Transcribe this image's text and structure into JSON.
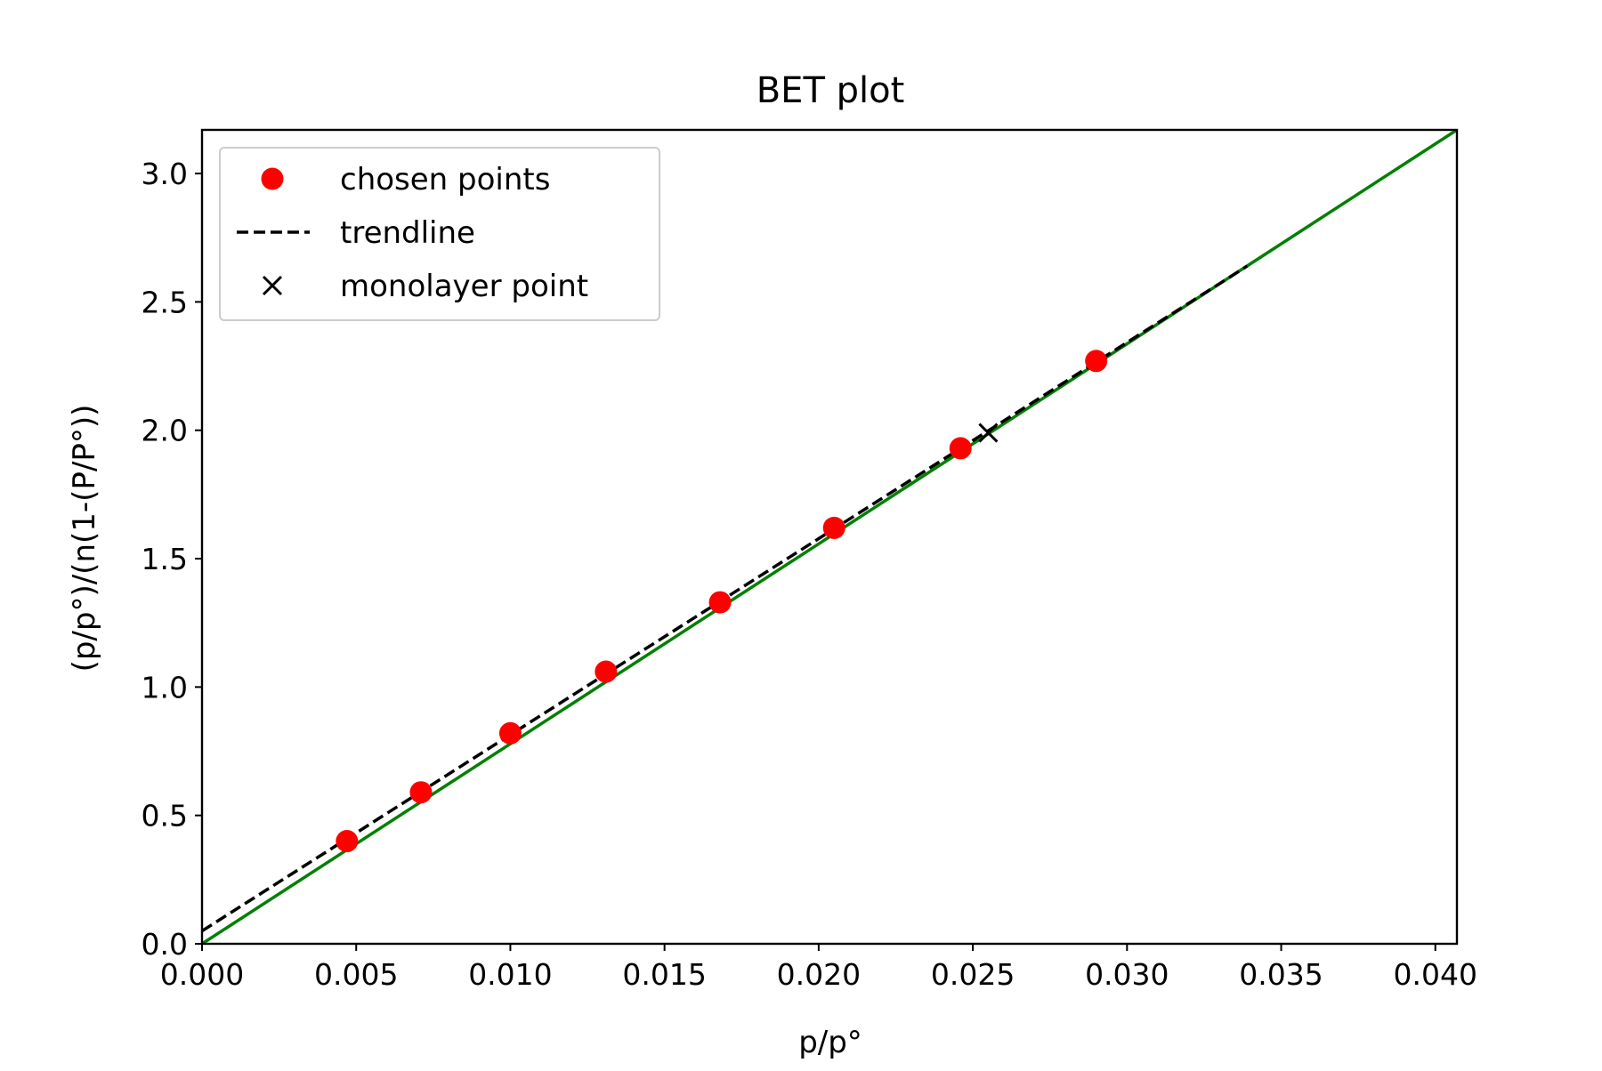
{
  "chart_data": {
    "type": "scatter",
    "title": "BET plot",
    "xlabel": "p/p°",
    "ylabel": "(p/p°)/(n(1-(P/P°))",
    "xlim": [
      0,
      0.0407
    ],
    "ylim": [
      0,
      3.17
    ],
    "x_ticks": [
      0.0,
      0.005,
      0.01,
      0.015,
      0.02,
      0.025,
      0.03,
      0.035,
      0.04
    ],
    "x_tick_labels": [
      "0.000",
      "0.005",
      "0.010",
      "0.015",
      "0.020",
      "0.025",
      "0.030",
      "0.035",
      "0.040"
    ],
    "y_ticks": [
      0.0,
      0.5,
      1.0,
      1.5,
      2.0,
      2.5,
      3.0
    ],
    "y_tick_labels": [
      "0.0",
      "0.5",
      "1.0",
      "1.5",
      "2.0",
      "2.5",
      "3.0"
    ],
    "grid": false,
    "legend_position": "top-left",
    "series": [
      {
        "name": "chosen points",
        "kind": "scatter",
        "color": "#ff0000",
        "x": [
          0.0047,
          0.0071,
          0.01,
          0.0131,
          0.0168,
          0.0205,
          0.0246,
          0.029
        ],
        "y": [
          0.4,
          0.59,
          0.82,
          1.06,
          1.33,
          1.62,
          1.93,
          2.27
        ]
      },
      {
        "name": "trendline",
        "kind": "line",
        "style": "dashed",
        "color": "#000000",
        "x": [
          0.0,
          0.0339
        ],
        "y": [
          0.05,
          2.64
        ]
      },
      {
        "name": "monolayer point",
        "kind": "marker",
        "marker": "x",
        "color": "#000000",
        "x": [
          0.0255
        ],
        "y": [
          1.99
        ]
      },
      {
        "kind": "line",
        "style": "solid",
        "color": "#008000",
        "x": [
          0.0,
          0.0407
        ],
        "y": [
          0.0,
          3.17
        ]
      }
    ]
  }
}
